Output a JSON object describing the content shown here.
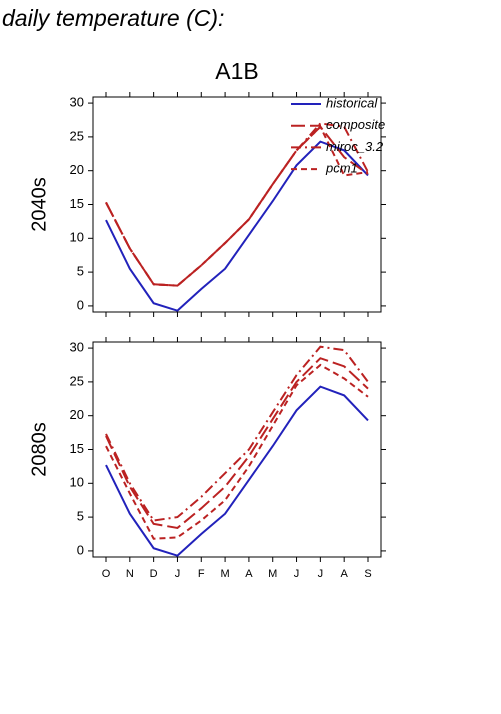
{
  "heading": "daily temperature (C):",
  "chart_data": [
    {
      "type": "line",
      "title": "A1B",
      "ylabel": "2040s",
      "ylim": [
        -0.9,
        30.9
      ],
      "yticks": [
        0,
        5,
        10,
        15,
        20,
        25,
        30
      ],
      "legend": "upper right",
      "series": [
        {
          "name": "historical",
          "color": "#2222bb",
          "dash": "solid",
          "values": [
            12.7,
            5.5,
            0.4,
            -0.7,
            2.5,
            5.5,
            10.5,
            15.5,
            20.8,
            24.3,
            23,
            19.3
          ]
        },
        {
          "name": "composite",
          "color": "#bb2222",
          "dash": "long",
          "values": [
            15.3,
            8.5,
            3.2,
            3.0,
            6.0,
            9.3,
            12.8,
            18,
            23,
            26.5,
            22,
            19.5
          ]
        },
        {
          "name": "miroc_3.2",
          "color": "#bb2222",
          "dash": "dashdot",
          "values": [
            15.3,
            8.5,
            3.2,
            3.0,
            6.0,
            9.3,
            12.8,
            18,
            23,
            27,
            26.5,
            19.8
          ]
        },
        {
          "name": "pcm1",
          "color": "#bb2222",
          "dash": "short",
          "values": [
            15.3,
            8.5,
            3.2,
            3.0,
            6.0,
            9.3,
            12.8,
            18,
            23,
            26.5,
            19.3,
            19.8
          ]
        }
      ]
    },
    {
      "type": "line",
      "ylabel": "2080s",
      "categories": [
        "O",
        "N",
        "D",
        "J",
        "F",
        "M",
        "A",
        "M",
        "J",
        "J",
        "A",
        "S"
      ],
      "ylim": [
        -0.9,
        30.9
      ],
      "yticks": [
        0,
        5,
        10,
        15,
        20,
        25,
        30
      ],
      "series": [
        {
          "color": "#2222bb",
          "dash": "solid",
          "values": [
            12.7,
            5.5,
            0.4,
            -0.7,
            2.5,
            5.5,
            10.5,
            15.5,
            20.8,
            24.3,
            23,
            19.3
          ]
        },
        {
          "color": "#bb2222",
          "dash": "long",
          "values": [
            17,
            9.5,
            4,
            3.4,
            6.3,
            9.5,
            14,
            19.5,
            25,
            28.5,
            27.3,
            24
          ]
        },
        {
          "color": "#bb2222",
          "dash": "dashdot",
          "values": [
            17.3,
            10,
            4.5,
            5,
            8,
            11.5,
            15,
            20.5,
            26,
            30.2,
            29.7,
            25
          ]
        },
        {
          "color": "#bb2222",
          "dash": "short",
          "values": [
            15.5,
            8.5,
            1.8,
            2,
            4.5,
            7.5,
            12.5,
            18.5,
            24.5,
            27.5,
            25.5,
            22.8
          ]
        }
      ]
    }
  ]
}
